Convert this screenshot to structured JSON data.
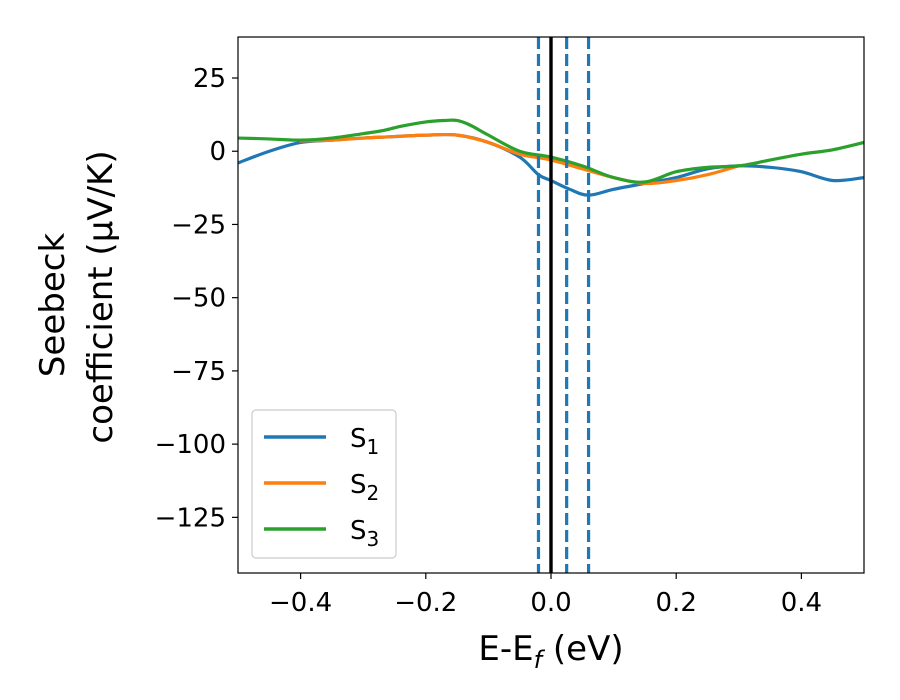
{
  "chart_data": {
    "type": "line",
    "xlabel": "E-E",
    "xlabel_sub": "f",
    "xlabel_unit": " (eV)",
    "ylabel_line1": "Seebeck",
    "ylabel_line2": "coefficient  (μV/K)",
    "xlim": [
      -0.5,
      0.5
    ],
    "ylim": [
      -144,
      39
    ],
    "xticks": [
      -0.4,
      -0.2,
      0.0,
      0.2,
      0.4
    ],
    "xtick_labels": [
      "−0.4",
      "−0.2",
      "0.0",
      "0.2",
      "0.4"
    ],
    "yticks": [
      25,
      0,
      -25,
      -50,
      -75,
      -100,
      -125
    ],
    "ytick_labels": [
      "25",
      "0",
      "−25",
      "−50",
      "−75",
      "−100",
      "−125"
    ],
    "grid": false,
    "legend_position": "lower-left",
    "vertical_lines": [
      {
        "x": -0.02,
        "style": "dashed",
        "color": "#1f77b4"
      },
      {
        "x": 0.0,
        "style": "solid",
        "color": "#000000"
      },
      {
        "x": 0.025,
        "style": "dashed",
        "color": "#1f77b4"
      },
      {
        "x": 0.06,
        "style": "dashed",
        "color": "#1f77b4"
      }
    ],
    "series": [
      {
        "name": "S",
        "sub": "1",
        "color": "#1f77b4",
        "x": [
          -0.5,
          -0.45,
          -0.4,
          -0.35,
          -0.3,
          -0.25,
          -0.2,
          -0.15,
          -0.1,
          -0.05,
          -0.02,
          0.0,
          0.03,
          0.06,
          0.1,
          0.15,
          0.2,
          0.25,
          0.3,
          0.35,
          0.4,
          0.45,
          0.5
        ],
        "y": [
          -4,
          0,
          3,
          3.8,
          4.5,
          5,
          5.5,
          5.5,
          3,
          -2,
          -8,
          -10,
          -13,
          -15,
          -13,
          -11,
          -9,
          -6,
          -5,
          -5.5,
          -7,
          -10,
          -9
        ]
      },
      {
        "name": "S",
        "sub": "2",
        "color": "#ff7f0e",
        "x": [
          -0.4,
          -0.35,
          -0.3,
          -0.25,
          -0.2,
          -0.15,
          -0.1,
          -0.05,
          0.0,
          0.05,
          0.1,
          0.15,
          0.2,
          0.25,
          0.3
        ],
        "y": [
          3.5,
          3.8,
          4.5,
          5,
          5.5,
          5.5,
          3,
          -1,
          -3,
          -6,
          -9,
          -11,
          -10,
          -8,
          -5
        ]
      },
      {
        "name": "S",
        "sub": "3",
        "color": "#2ca02c",
        "x": [
          -0.5,
          -0.45,
          -0.4,
          -0.35,
          -0.3,
          -0.27,
          -0.24,
          -0.2,
          -0.17,
          -0.15,
          -0.13,
          -0.1,
          -0.05,
          0.0,
          0.05,
          0.1,
          0.15,
          0.2,
          0.25,
          0.3,
          0.35,
          0.4,
          0.45,
          0.5
        ],
        "y": [
          4.5,
          4.2,
          3.8,
          4.5,
          6,
          7,
          8.5,
          10,
          10.5,
          10.5,
          9,
          5.5,
          0,
          -2,
          -5,
          -9,
          -10.5,
          -7,
          -5.5,
          -5,
          -3,
          -1,
          0.5,
          3
        ]
      }
    ]
  }
}
